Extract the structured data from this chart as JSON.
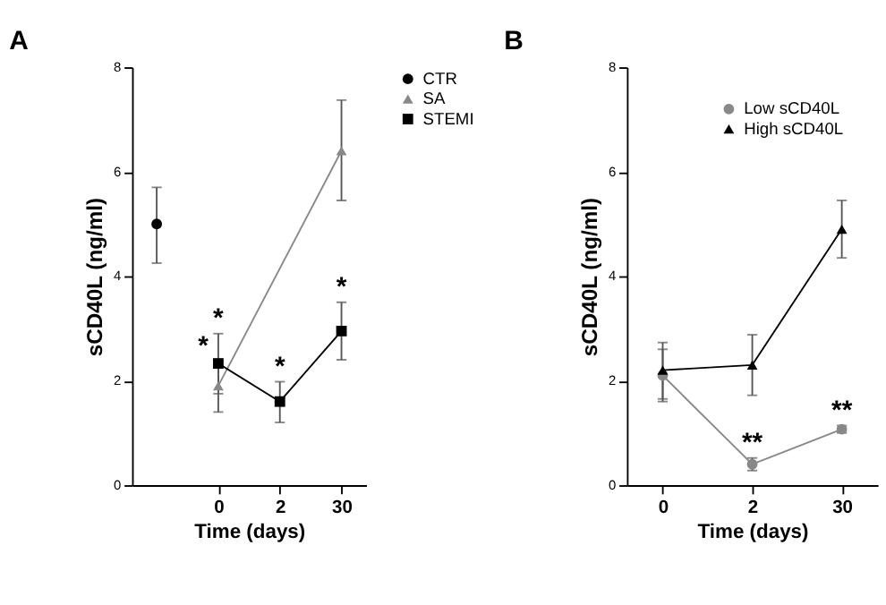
{
  "chart_data": [
    {
      "type": "line",
      "title": "A",
      "xlabel": "Time (days)",
      "ylabel": "sCD40L (ng/ml)",
      "categories": [
        null,
        "0",
        "2",
        "30"
      ],
      "ylim": [
        0,
        8
      ],
      "yticks": [
        0,
        2,
        4,
        6,
        8
      ],
      "grid": false,
      "legend": "right",
      "series": [
        {
          "name": "CTR",
          "color": "#000000",
          "marker": "circle",
          "values": [
            5.0,
            null,
            null,
            null
          ],
          "errors": [
            [
              4.25,
              5.7
            ],
            null,
            null,
            null
          ]
        },
        {
          "name": "SA",
          "color": "#888888",
          "marker": "triangle",
          "values": [
            null,
            1.9,
            null,
            6.4
          ],
          "errors": [
            null,
            [
              1.4,
              2.38
            ],
            null,
            [
              5.45,
              7.37
            ]
          ]
        },
        {
          "name": "STEMI",
          "color": "#000000",
          "marker": "square",
          "values": [
            null,
            2.33,
            1.6,
            2.95
          ],
          "errors": [
            null,
            [
              1.75,
              2.9
            ],
            [
              1.2,
              1.98
            ],
            [
              2.4,
              3.5
            ]
          ]
        }
      ],
      "annotations": [
        {
          "text": "*",
          "x": "0",
          "y": 1.9
        },
        {
          "text": "*",
          "x": "0",
          "y": 2.33
        },
        {
          "text": "*",
          "x": "2",
          "y": 1.6
        },
        {
          "text": "*",
          "x": "30",
          "y": 2.95
        }
      ]
    },
    {
      "type": "line",
      "title": "B",
      "xlabel": "Time (days)",
      "ylabel": "sCD40L (ng/ml)",
      "categories": [
        "0",
        "2",
        "30"
      ],
      "ylim": [
        0,
        8
      ],
      "yticks": [
        0,
        2,
        4,
        6,
        8
      ],
      "grid": false,
      "legend": "top right",
      "series": [
        {
          "name": "Low sCD40L",
          "color": "#888888",
          "marker": "circle",
          "values": [
            2.1,
            0.4,
            1.07
          ],
          "errors": [
            [
              1.6,
              2.6
            ],
            [
              0.28,
              0.52
            ],
            [
              1.0,
              1.14
            ]
          ]
        },
        {
          "name": "High sCD40L",
          "color": "#000000",
          "marker": "triangle",
          "values": [
            2.2,
            2.3,
            4.9
          ],
          "errors": [
            [
              1.65,
              2.73
            ],
            [
              1.72,
              2.88
            ],
            [
              4.35,
              5.45
            ]
          ]
        }
      ],
      "annotations": [
        {
          "text": "**",
          "x": "2",
          "y": 0.4
        },
        {
          "text": "**",
          "x": "30",
          "y": 1.07
        }
      ]
    }
  ]
}
